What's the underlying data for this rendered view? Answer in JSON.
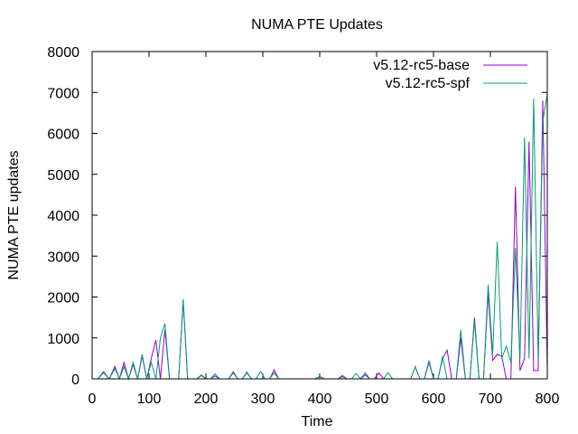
{
  "chart_data": {
    "type": "line",
    "title": "NUMA PTE Updates",
    "xlabel": "Time",
    "ylabel": "NUMA PTE updates",
    "xlim": [
      0,
      800
    ],
    "ylim": [
      0,
      8000
    ],
    "xticks": [
      0,
      100,
      200,
      300,
      400,
      500,
      600,
      700,
      800
    ],
    "yticks": [
      0,
      1000,
      2000,
      3000,
      4000,
      5000,
      6000,
      7000,
      8000
    ],
    "grid": false,
    "legend_position": "top-right",
    "series": [
      {
        "name": "v5.12-rc5-base",
        "color": "#9400d3",
        "points": [
          [
            0,
            0
          ],
          [
            10,
            0
          ],
          [
            20,
            150
          ],
          [
            30,
            0
          ],
          [
            40,
            300
          ],
          [
            48,
            0
          ],
          [
            56,
            400
          ],
          [
            64,
            0
          ],
          [
            72,
            350
          ],
          [
            80,
            0
          ],
          [
            88,
            550
          ],
          [
            96,
            0
          ],
          [
            104,
            500
          ],
          [
            112,
            950
          ],
          [
            120,
            0
          ],
          [
            128,
            1200
          ],
          [
            136,
            0
          ],
          [
            144,
            0
          ],
          [
            152,
            0
          ],
          [
            160,
            1900
          ],
          [
            168,
            0
          ],
          [
            176,
            0
          ],
          [
            184,
            0
          ],
          [
            192,
            80
          ],
          [
            200,
            0
          ],
          [
            208,
            0
          ],
          [
            216,
            70
          ],
          [
            224,
            0
          ],
          [
            232,
            0
          ],
          [
            240,
            0
          ],
          [
            248,
            150
          ],
          [
            256,
            0
          ],
          [
            264,
            0
          ],
          [
            272,
            150
          ],
          [
            280,
            0
          ],
          [
            288,
            0
          ],
          [
            296,
            0
          ],
          [
            304,
            0
          ],
          [
            312,
            0
          ],
          [
            320,
            220
          ],
          [
            328,
            0
          ],
          [
            336,
            0
          ],
          [
            344,
            0
          ],
          [
            352,
            0
          ],
          [
            360,
            0
          ],
          [
            368,
            0
          ],
          [
            376,
            0
          ],
          [
            384,
            0
          ],
          [
            392,
            0
          ],
          [
            400,
            60
          ],
          [
            408,
            0
          ],
          [
            416,
            0
          ],
          [
            424,
            0
          ],
          [
            432,
            0
          ],
          [
            440,
            80
          ],
          [
            448,
            0
          ],
          [
            456,
            0
          ],
          [
            464,
            0
          ],
          [
            472,
            0
          ],
          [
            480,
            100
          ],
          [
            488,
            0
          ],
          [
            496,
            0
          ],
          [
            504,
            150
          ],
          [
            512,
            0
          ],
          [
            520,
            0
          ],
          [
            528,
            0
          ],
          [
            536,
            0
          ],
          [
            544,
            0
          ],
          [
            552,
            0
          ],
          [
            560,
            0
          ],
          [
            568,
            300
          ],
          [
            576,
            0
          ],
          [
            584,
            0
          ],
          [
            592,
            400
          ],
          [
            600,
            0
          ],
          [
            608,
            0
          ],
          [
            616,
            500
          ],
          [
            624,
            700
          ],
          [
            632,
            0
          ],
          [
            640,
            0
          ],
          [
            648,
            1000
          ],
          [
            656,
            0
          ],
          [
            664,
            0
          ],
          [
            672,
            1500
          ],
          [
            680,
            0
          ],
          [
            688,
            0
          ],
          [
            696,
            2100
          ],
          [
            704,
            450
          ],
          [
            712,
            600
          ],
          [
            720,
            550
          ],
          [
            728,
            0
          ],
          [
            736,
            0
          ],
          [
            744,
            4700
          ],
          [
            752,
            200
          ],
          [
            760,
            500
          ],
          [
            768,
            5800
          ],
          [
            776,
            200
          ],
          [
            784,
            200
          ],
          [
            792,
            6800
          ],
          [
            800,
            200
          ]
        ]
      },
      {
        "name": "v5.12-rc5-spf",
        "color": "#009e73",
        "points": [
          [
            0,
            0
          ],
          [
            10,
            0
          ],
          [
            20,
            180
          ],
          [
            30,
            0
          ],
          [
            40,
            250
          ],
          [
            48,
            0
          ],
          [
            56,
            300
          ],
          [
            64,
            0
          ],
          [
            72,
            400
          ],
          [
            80,
            0
          ],
          [
            88,
            600
          ],
          [
            96,
            0
          ],
          [
            104,
            400
          ],
          [
            112,
            0
          ],
          [
            120,
            1000
          ],
          [
            128,
            1350
          ],
          [
            136,
            0
          ],
          [
            144,
            0
          ],
          [
            152,
            0
          ],
          [
            160,
            1950
          ],
          [
            168,
            0
          ],
          [
            176,
            0
          ],
          [
            184,
            0
          ],
          [
            192,
            100
          ],
          [
            200,
            0
          ],
          [
            208,
            0
          ],
          [
            216,
            120
          ],
          [
            224,
            0
          ],
          [
            232,
            0
          ],
          [
            240,
            0
          ],
          [
            248,
            180
          ],
          [
            256,
            0
          ],
          [
            264,
            0
          ],
          [
            272,
            170
          ],
          [
            280,
            0
          ],
          [
            288,
            0
          ],
          [
            296,
            180
          ],
          [
            304,
            0
          ],
          [
            312,
            0
          ],
          [
            320,
            150
          ],
          [
            328,
            0
          ],
          [
            336,
            0
          ],
          [
            344,
            0
          ],
          [
            352,
            0
          ],
          [
            360,
            0
          ],
          [
            368,
            0
          ],
          [
            376,
            0
          ],
          [
            384,
            0
          ],
          [
            392,
            0
          ],
          [
            400,
            60
          ],
          [
            408,
            0
          ],
          [
            416,
            0
          ],
          [
            424,
            0
          ],
          [
            432,
            0
          ],
          [
            440,
            50
          ],
          [
            448,
            0
          ],
          [
            456,
            0
          ],
          [
            464,
            130
          ],
          [
            472,
            0
          ],
          [
            480,
            150
          ],
          [
            488,
            0
          ],
          [
            496,
            0
          ],
          [
            504,
            0
          ],
          [
            512,
            0
          ],
          [
            520,
            150
          ],
          [
            528,
            0
          ],
          [
            536,
            0
          ],
          [
            544,
            0
          ],
          [
            552,
            0
          ],
          [
            560,
            0
          ],
          [
            568,
            300
          ],
          [
            576,
            0
          ],
          [
            584,
            0
          ],
          [
            592,
            450
          ],
          [
            600,
            0
          ],
          [
            608,
            0
          ],
          [
            616,
            550
          ],
          [
            624,
            0
          ],
          [
            632,
            0
          ],
          [
            640,
            0
          ],
          [
            648,
            1200
          ],
          [
            656,
            0
          ],
          [
            664,
            0
          ],
          [
            672,
            1400
          ],
          [
            680,
            0
          ],
          [
            688,
            0
          ],
          [
            696,
            2300
          ],
          [
            704,
            600
          ],
          [
            712,
            3350
          ],
          [
            720,
            500
          ],
          [
            728,
            800
          ],
          [
            736,
            400
          ],
          [
            744,
            3200
          ],
          [
            752,
            500
          ],
          [
            760,
            5900
          ],
          [
            768,
            500
          ],
          [
            776,
            6850
          ],
          [
            784,
            500
          ],
          [
            792,
            6300
          ],
          [
            800,
            6950
          ]
        ]
      }
    ]
  }
}
